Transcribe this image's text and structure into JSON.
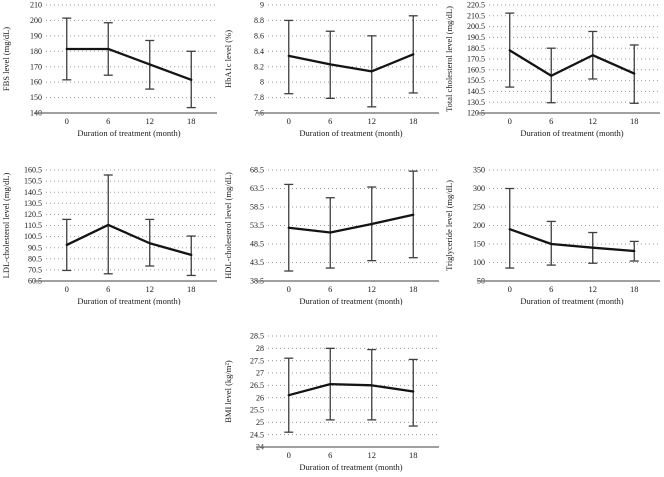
{
  "chart_data": [
    {
      "id": "fbs",
      "type": "line",
      "title": "",
      "ylabel": "FBS level (mg/dL)",
      "xlabel": "Duration of treatment (month)",
      "x": [
        0,
        6,
        12,
        18
      ],
      "xtick_labels": [
        "0",
        "6",
        "12",
        "18"
      ],
      "ylim": [
        140,
        210
      ],
      "ystep": 10,
      "ytick_labels": [
        "140",
        "150",
        "160",
        "170",
        "180",
        "190",
        "200",
        "210"
      ],
      "series": [
        {
          "name": "mean",
          "values": [
            181.5,
            181.5,
            171.5,
            161.5
          ]
        }
      ],
      "error_low": [
        161.5,
        164.5,
        155.5,
        143.5
      ],
      "error_high": [
        201.5,
        198.5,
        187,
        180
      ],
      "grid": "dotted-horizontal",
      "legend": "none"
    },
    {
      "id": "hba1c",
      "type": "line",
      "title": "",
      "ylabel": "HbA1c level (%)",
      "xlabel": "Duration of treatment (month)",
      "x": [
        0,
        6,
        12,
        18
      ],
      "xtick_labels": [
        "0",
        "6",
        "12",
        "18"
      ],
      "ylim": [
        7.6,
        9
      ],
      "ystep": 0.2,
      "ytick_labels": [
        "7.6",
        "7.8",
        "8",
        "8.2",
        "8.4",
        "8.6",
        "8.8",
        "9"
      ],
      "series": [
        {
          "name": "mean",
          "values": [
            8.34,
            8.23,
            8.14,
            8.36
          ]
        }
      ],
      "error_low": [
        7.85,
        7.79,
        7.68,
        7.86
      ],
      "error_high": [
        8.8,
        8.66,
        8.6,
        8.86
      ],
      "grid": "dotted-horizontal",
      "legend": "none"
    },
    {
      "id": "total-cholesterol",
      "type": "line",
      "title": "",
      "ylabel": "Total cholesterol level (mg/dL)",
      "xlabel": "Duration of treatment (month)",
      "x": [
        0,
        6,
        12,
        18
      ],
      "xtick_labels": [
        "0",
        "6",
        "12",
        "18"
      ],
      "ylim": [
        120.5,
        220.5
      ],
      "ystep": 10,
      "ytick_labels": [
        "120.5",
        "130.5",
        "140.5",
        "150.5",
        "160.5",
        "170.5",
        "180.5",
        "190.5",
        "200.5",
        "210.5",
        "220.5"
      ],
      "series": [
        {
          "name": "mean",
          "values": [
            178.5,
            155,
            174,
            157
          ]
        }
      ],
      "error_low": [
        144.5,
        130,
        152,
        129.5
      ],
      "error_high": [
        213,
        180.5,
        196,
        183.5
      ],
      "grid": "dotted-horizontal",
      "legend": "none"
    },
    {
      "id": "ldl-cholesterol",
      "type": "line",
      "title": "",
      "ylabel": "LDL-cholesterol level (mg/dL)",
      "xlabel": "Duration of treatment (month)",
      "x": [
        0,
        6,
        12,
        18
      ],
      "xtick_labels": [
        "0",
        "6",
        "12",
        "18"
      ],
      "ylim": [
        60.5,
        160.5
      ],
      "ystep": 10,
      "ytick_labels": [
        "60.5",
        "70.5",
        "80.5",
        "90.5",
        "100.5",
        "110.5",
        "120.5",
        "130.5",
        "140.5",
        "150.5",
        "160.5"
      ],
      "series": [
        {
          "name": "mean",
          "values": [
            93,
            111,
            94.5,
            84
          ]
        }
      ],
      "error_low": [
        70,
        67,
        74,
        65.5
      ],
      "error_high": [
        116,
        156,
        116,
        101
      ],
      "grid": "dotted-horizontal",
      "legend": "none"
    },
    {
      "id": "hdl-cholesterol",
      "type": "line",
      "title": "",
      "ylabel": "HDL-cholesterol level (mg/dL)",
      "xlabel": "Duration of treatment (month)",
      "x": [
        0,
        6,
        12,
        18
      ],
      "xtick_labels": [
        "0",
        "6",
        "12",
        "18"
      ],
      "ylim": [
        38.5,
        68.5
      ],
      "ystep": 5,
      "ytick_labels": [
        "38.5",
        "43.5",
        "48.5",
        "53.5",
        "58.5",
        "63.5",
        "68.5"
      ],
      "series": [
        {
          "name": "mean",
          "values": [
            52.9,
            51.6,
            53.9,
            56.4
          ]
        }
      ],
      "error_low": [
        41.2,
        42,
        44,
        44.8
      ],
      "error_high": [
        64.6,
        61,
        63.9,
        68.2
      ],
      "grid": "dotted-horizontal",
      "legend": "none"
    },
    {
      "id": "triglyceride",
      "type": "line",
      "title": "",
      "ylabel": "Triglyceride level (mg/dL)",
      "xlabel": "Duration of treatment (month)",
      "x": [
        0,
        6,
        12,
        18
      ],
      "xtick_labels": [
        "0",
        "6",
        "12",
        "18"
      ],
      "ylim": [
        50,
        350
      ],
      "ystep": 50,
      "ytick_labels": [
        "50",
        "100",
        "150",
        "200",
        "250",
        "300",
        "350"
      ],
      "series": [
        {
          "name": "mean",
          "values": [
            190,
            150,
            140,
            131
          ]
        }
      ],
      "error_low": [
        85,
        93,
        98,
        104
      ],
      "error_high": [
        300,
        211,
        181,
        157
      ],
      "grid": "dotted-horizontal",
      "legend": "none"
    },
    {
      "id": "bmi",
      "type": "line",
      "title": "",
      "ylabel": "BMI level (kg/m²)",
      "xlabel": "Duration of treatment (month)",
      "x": [
        0,
        6,
        12,
        18
      ],
      "xtick_labels": [
        "0",
        "6",
        "12",
        "18"
      ],
      "ylim": [
        24,
        28.5
      ],
      "ystep": 0.5,
      "ytick_labels": [
        "24",
        "24.5",
        "25",
        "25.5",
        "26",
        "26.5",
        "27",
        "27.5",
        "28",
        "28.5"
      ],
      "series": [
        {
          "name": "mean",
          "values": [
            26.1,
            26.55,
            26.5,
            26.25
          ]
        }
      ],
      "error_low": [
        24.6,
        25.1,
        25.1,
        24.85
      ],
      "error_high": [
        27.6,
        28,
        27.95,
        27.55
      ],
      "grid": "dotted-horizontal",
      "legend": "none"
    }
  ],
  "style": {
    "background": "#ffffff",
    "series_color": "#141414",
    "error_bar_color": "#3f3f3f",
    "gridline_color": "#999999",
    "axis_line_color": "#808080",
    "text_color": "#1a1a1a"
  }
}
